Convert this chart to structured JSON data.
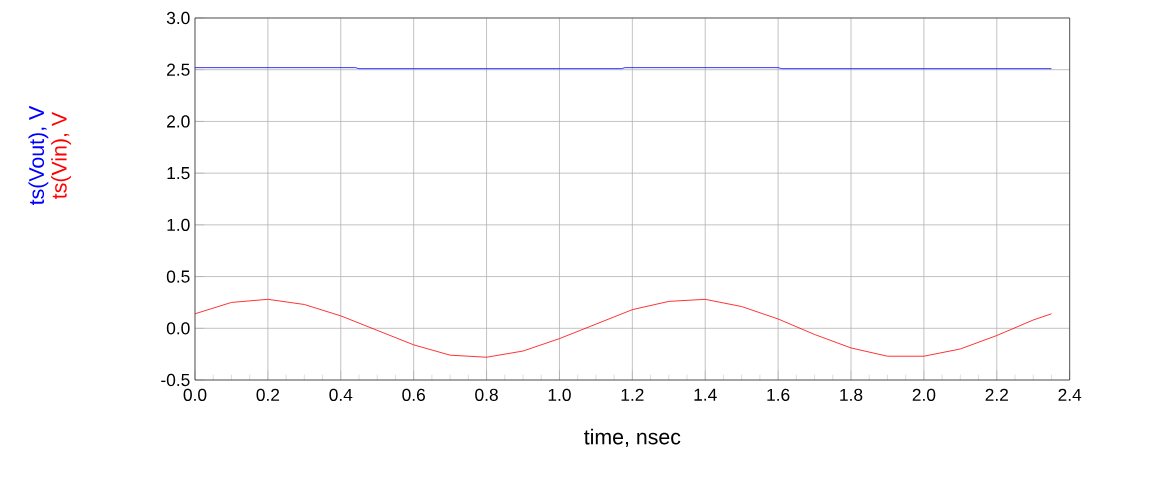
{
  "chart_data": {
    "type": "line",
    "xlabel": "time, nsec",
    "xlim": [
      0,
      2.4
    ],
    "ylim": [
      -0.5,
      3.0
    ],
    "xticks": [
      {
        "value": 0,
        "label": "0.0"
      },
      {
        "value": 0.2,
        "label": "0.2"
      },
      {
        "value": 0.4,
        "label": "0.4"
      },
      {
        "value": 0.6,
        "label": "0.6"
      },
      {
        "value": 0.8,
        "label": "0.8"
      },
      {
        "value": 1.0,
        "label": "1.0"
      },
      {
        "value": 1.2,
        "label": "1.2"
      },
      {
        "value": 1.4,
        "label": "1.4"
      },
      {
        "value": 1.6,
        "label": "1.6"
      },
      {
        "value": 1.8,
        "label": "1.8"
      },
      {
        "value": 2.0,
        "label": "2.0"
      },
      {
        "value": 2.2,
        "label": "2.2"
      },
      {
        "value": 2.4,
        "label": "2.4"
      }
    ],
    "yticks": [
      {
        "value": -0.5,
        "label": "-0.5"
      },
      {
        "value": 0,
        "label": "0.0"
      },
      {
        "value": 0.5,
        "label": "0.5"
      },
      {
        "value": 1.0,
        "label": "1.0"
      },
      {
        "value": 1.5,
        "label": "1.5"
      },
      {
        "value": 2.0,
        "label": "2.0"
      },
      {
        "value": 2.5,
        "label": "2.5"
      },
      {
        "value": 3.0,
        "label": "3.0"
      }
    ],
    "grid": true,
    "legend": false,
    "marker": "none",
    "line_style": "solid",
    "series": [
      {
        "name": "ts(Vout), V",
        "color": "#0000ff",
        "x": [
          0,
          0.44,
          0.45,
          1.17,
          1.18,
          1.6,
          1.61,
          2.35
        ],
        "values": [
          2.52,
          2.52,
          2.51,
          2.51,
          2.52,
          2.52,
          2.51,
          2.51
        ]
      },
      {
        "name": "ts(Vin), V",
        "color": "#ff0000",
        "x": [
          0,
          0.1,
          0.2,
          0.3,
          0.4,
          0.5,
          0.6,
          0.7,
          0.8,
          0.9,
          1.0,
          1.1,
          1.2,
          1.3,
          1.4,
          1.5,
          1.6,
          1.7,
          1.8,
          1.9,
          2.0,
          2.1,
          2.2,
          2.3,
          2.35
        ],
        "values": [
          0.14,
          0.25,
          0.28,
          0.23,
          0.12,
          -0.02,
          -0.16,
          -0.26,
          -0.28,
          -0.22,
          -0.1,
          0.04,
          0.18,
          0.26,
          0.28,
          0.21,
          0.09,
          -0.06,
          -0.19,
          -0.27,
          -0.27,
          -0.2,
          -0.07,
          0.08,
          0.14
        ]
      }
    ]
  }
}
